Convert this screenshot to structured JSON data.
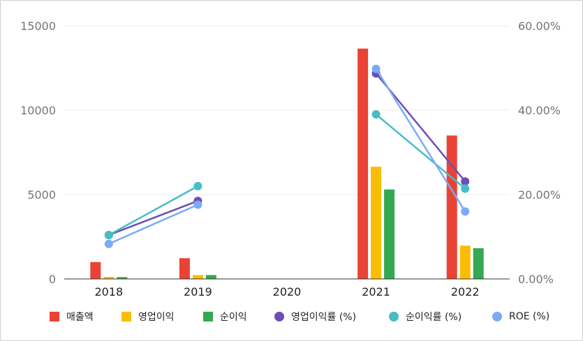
{
  "chart_data": {
    "type": "bar",
    "categories": [
      "2018",
      "2019",
      "2020",
      "2021",
      "2022"
    ],
    "left_axis": {
      "ticks": [
        "15000",
        "10000",
        "5000",
        "0"
      ],
      "range": [
        0,
        15000
      ]
    },
    "right_axis": {
      "ticks": [
        "60.00%",
        "40.00%",
        "20.00%",
        "0.00%"
      ],
      "range": [
        0,
        60
      ]
    },
    "grid": true,
    "legend_position": "bottom",
    "bar_series": [
      {
        "name": "매출액",
        "color": "#ea4335",
        "values": [
          1000,
          1230,
          null,
          13650,
          8500
        ]
      },
      {
        "name": "영업이익",
        "color": "#fbbc04",
        "values": [
          120,
          230,
          null,
          6650,
          1970
        ]
      },
      {
        "name": "순이익",
        "color": "#34a853",
        "values": [
          110,
          230,
          null,
          5300,
          1820
        ]
      }
    ],
    "line_series": [
      {
        "name": "영업이익률 (%)",
        "color": "#6c4fb6",
        "values": [
          10.4,
          18.5,
          null,
          48.7,
          23.1
        ]
      },
      {
        "name": "순이익률 (%)",
        "color": "#46bdc6",
        "values": [
          10.4,
          22.0,
          null,
          39.0,
          21.4
        ]
      },
      {
        "name": "ROE (%)",
        "color": "#7baaf7",
        "values": [
          8.3,
          17.6,
          null,
          49.8,
          16.0
        ]
      }
    ]
  }
}
